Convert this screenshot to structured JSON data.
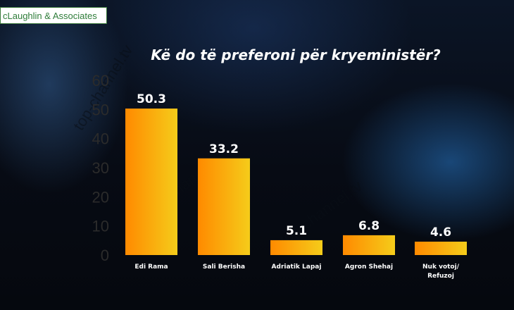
{
  "brand": {
    "name": "cLaughlin & Associates"
  },
  "watermark": {
    "text": "top-channel.tv"
  },
  "chart_data": {
    "type": "bar",
    "title": "Kë do të preferoni për kryeministër?",
    "categories": [
      "Edi Rama",
      "Sali Berisha",
      "Adriatik Lapaj",
      "Agron Shehaj",
      "Nuk votoj/\nRefuzoj"
    ],
    "values": [
      50.3,
      33.2,
      5.1,
      6.8,
      4.6
    ],
    "value_labels": [
      "50.3",
      "33.2",
      "5.1",
      "6.8",
      "4.6"
    ],
    "ylim": [
      0,
      60
    ],
    "yticks": [
      0,
      10,
      20,
      30,
      40,
      50,
      60
    ],
    "grid": false,
    "colors": {
      "bar_left": "#ff8a00",
      "bar_right": "#f5cc1a",
      "tick_label": "#2b2b2b",
      "value_label": "#ffffff",
      "category_label": "#ffffff"
    }
  }
}
